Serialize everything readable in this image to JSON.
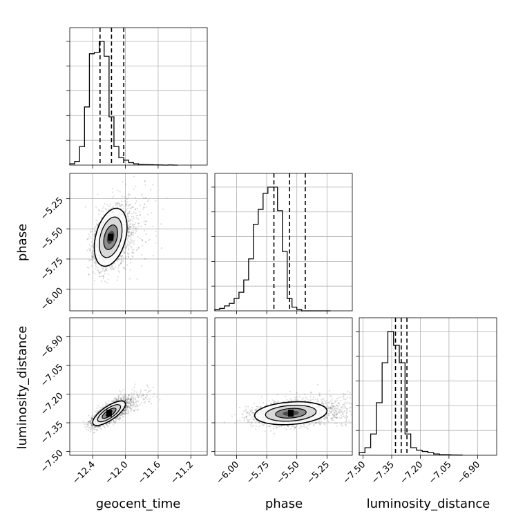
{
  "chart_data": {
    "type": "corner",
    "parameters": [
      "geocent_time",
      "phase",
      "luminosity_distance"
    ],
    "labels": {
      "x_bottom": [
        "geocent_time",
        "phase",
        "luminosity_distance"
      ],
      "y_left": [
        "",
        "phase",
        "luminosity_distance"
      ]
    },
    "ranges": {
      "geocent_time": [
        -12.68,
        -11.0
      ],
      "phase": [
        -6.18,
        -5.04
      ],
      "luminosity_distance": [
        -7.52,
        -6.8
      ]
    },
    "ticks": {
      "geocent_time": [
        -12.4,
        -12.0,
        -11.6,
        -11.2
      ],
      "phase": [
        -6.0,
        -5.75,
        -5.5,
        -5.25
      ],
      "luminosity_distance": [
        -7.5,
        -7.35,
        -7.2,
        -7.05,
        -6.9
      ]
    },
    "tick_labels": {
      "geocent_time": [
        "−12.4",
        "−12.0",
        "−11.6",
        "−11.2"
      ],
      "phase": [
        "−6.00",
        "−5.75",
        "−5.50",
        "−5.25"
      ],
      "luminosity_distance": [
        "−7.50",
        "−7.35",
        "−7.20",
        "−7.05",
        "−6.90"
      ]
    },
    "histograms": {
      "geocent_time": {
        "bin_edges": [
          -12.68,
          -12.62,
          -12.56,
          -12.5,
          -12.44,
          -12.38,
          -12.32,
          -12.26,
          -12.2,
          -12.14,
          -12.08,
          -12.02,
          -11.96,
          -11.9,
          -11.84,
          -11.78,
          -11.72,
          -11.66,
          -11.6,
          -11.54,
          -11.48,
          -11.42,
          -11.36
        ],
        "counts": [
          0.01,
          0.03,
          0.15,
          0.47,
          0.9,
          0.91,
          1.0,
          0.88,
          0.39,
          0.15,
          0.06,
          0.04,
          0.02,
          0.01,
          0.005,
          0.004,
          0.003,
          0.002,
          0.001,
          0.0,
          0.001,
          0.0
        ],
        "quantiles": [
          -12.31,
          -12.17,
          -12.02
        ]
      },
      "phase": {
        "bin_edges": [
          -6.18,
          -6.14,
          -6.1,
          -6.06,
          -6.02,
          -5.98,
          -5.94,
          -5.9,
          -5.86,
          -5.82,
          -5.78,
          -5.74,
          -5.7,
          -5.66,
          -5.62,
          -5.58,
          -5.54,
          -5.5,
          -5.46,
          -5.42,
          -5.38,
          -5.34,
          -5.3,
          -5.26,
          -5.22
        ],
        "counts": [
          0.01,
          0.02,
          0.04,
          0.06,
          0.1,
          0.15,
          0.25,
          0.42,
          0.7,
          0.82,
          0.95,
          1.0,
          1.0,
          0.81,
          0.48,
          0.1,
          0.03,
          0.01,
          0.0,
          0.0,
          0.0,
          0.0,
          0.0,
          0.0
        ],
        "quantiles": [
          -5.69,
          -5.56,
          -5.43
        ]
      },
      "luminosity_distance": {
        "bin_edges": [
          -7.52,
          -7.49,
          -7.46,
          -7.43,
          -7.4,
          -7.37,
          -7.34,
          -7.31,
          -7.28,
          -7.25,
          -7.22,
          -7.19,
          -7.16,
          -7.13,
          -7.1,
          -7.07,
          -7.04,
          -7.01,
          -6.98
        ],
        "counts": [
          0.02,
          0.06,
          0.17,
          0.42,
          0.74,
          0.99,
          0.88,
          0.74,
          0.17,
          0.06,
          0.04,
          0.03,
          0.02,
          0.01,
          0.005,
          0.004,
          0.002,
          0.001
        ],
        "quantiles": [
          -7.33,
          -7.3,
          -7.27
        ]
      }
    },
    "joint": [
      {
        "x": "geocent_time",
        "y": "phase",
        "mean": [
          -12.18,
          -5.57
        ],
        "sd": [
          0.1,
          0.12
        ],
        "rho": 0.35,
        "n_samples": 2200
      },
      {
        "x": "geocent_time",
        "y": "luminosity_distance",
        "mean": [
          -12.2,
          -7.3
        ],
        "sd": [
          0.1,
          0.032
        ],
        "rho": 0.75,
        "n_samples": 2200
      },
      {
        "x": "phase",
        "y": "luminosity_distance",
        "mean": [
          -5.55,
          -7.3
        ],
        "sd": [
          0.15,
          0.03
        ],
        "rho": 0.2,
        "n_samples": 2200
      }
    ],
    "grid": true,
    "legend": "none"
  }
}
